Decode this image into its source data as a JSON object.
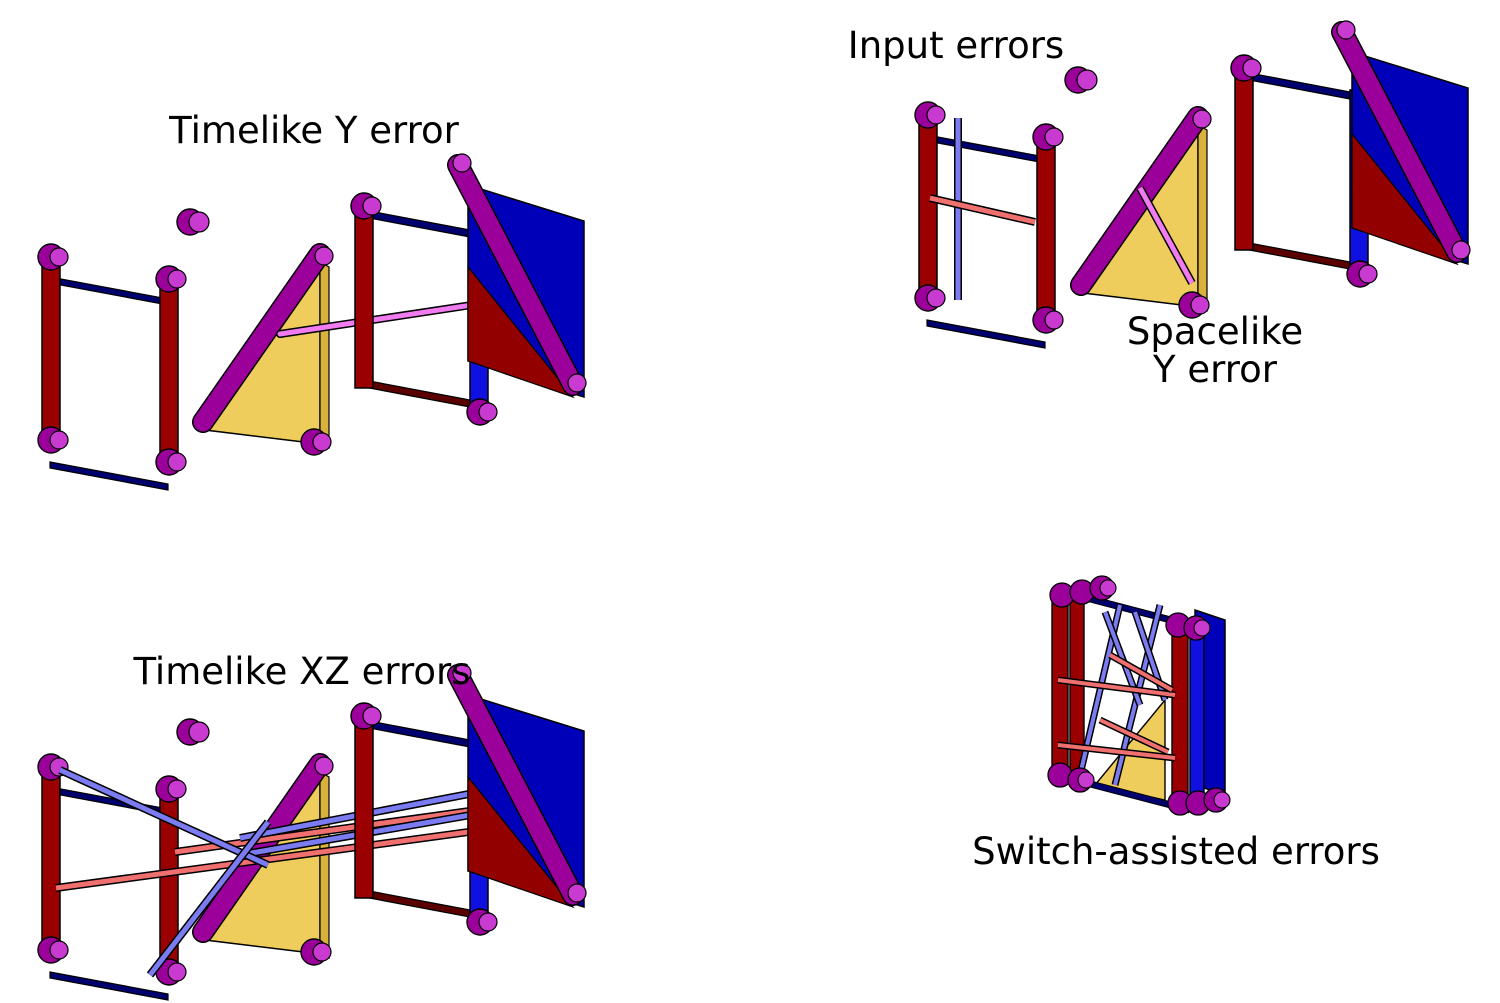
{
  "labels": {
    "timelike_y": "Timelike Y error",
    "input_errors": "Input errors",
    "spacelike_line1": "Spacelike",
    "spacelike_line2": "Y error",
    "timelike_xz": "Timelike XZ errors",
    "switch_assisted": "Switch-assisted errors"
  },
  "colors": {
    "red_bar": "#9a0000",
    "navy_bar": "#00006e",
    "magenta_cylinder": "#9b009b",
    "magenta_top": "#c93ad0",
    "blue_panel": "#0000b8",
    "dark_red_panel": "#930000",
    "yellow_triangle": "#eecd5c",
    "pink_error": "#f07cf0",
    "salmon_error": "#f07070",
    "light_blue_error": "#7c7cf2"
  }
}
